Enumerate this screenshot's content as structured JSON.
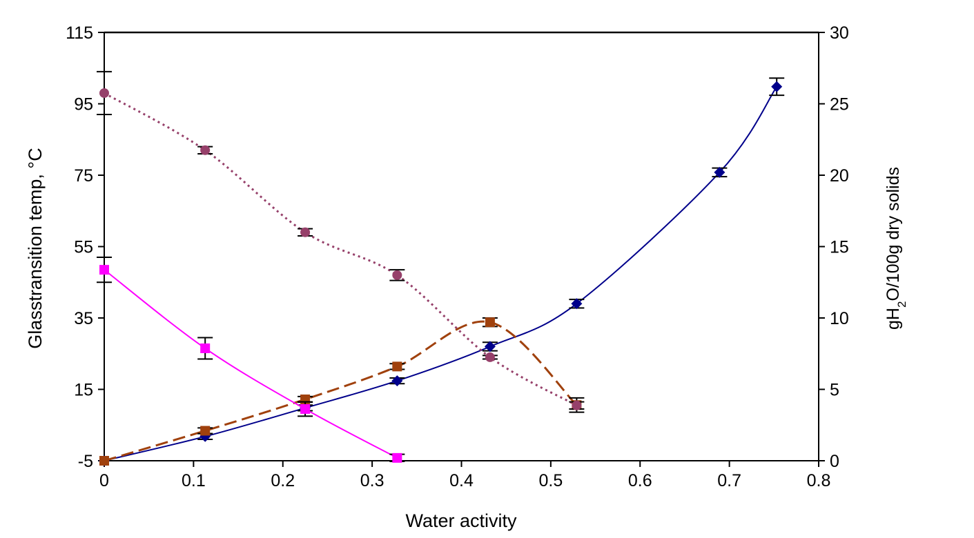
{
  "chart_data": {
    "type": "line",
    "xlabel": "Water activity",
    "ylabel_left": "Glasstransition temp, °C",
    "ylabel_right": {
      "prefix": "gH",
      "sub": "2",
      "suffix": "O/100g dry solids"
    },
    "xlim": [
      0,
      0.8
    ],
    "xticks": [
      0,
      0.1,
      0.2,
      0.3,
      0.4,
      0.5,
      0.6,
      0.7,
      0.8
    ],
    "ylim_left": [
      -5,
      115
    ],
    "yticks_left": [
      -5,
      15,
      35,
      55,
      75,
      95,
      115
    ],
    "ylim_right": [
      0,
      30
    ],
    "yticks_right": [
      0,
      5,
      10,
      15,
      20,
      25,
      30
    ],
    "grid": false,
    "legend": "none",
    "series": [
      {
        "axis": "right",
        "color": "#00008B",
        "marker": "diamond",
        "line": "solid",
        "x": [
          0,
          0.113,
          0.225,
          0.328,
          0.432,
          0.529,
          0.689,
          0.753
        ],
        "y": [
          0,
          1.7,
          3.7,
          5.6,
          8.0,
          11.0,
          20.2,
          26.2
        ],
        "err": [
          0,
          0.2,
          0.2,
          0.2,
          0.3,
          0.3,
          0.3,
          0.6
        ]
      },
      {
        "axis": "right",
        "color": "#A0410D",
        "marker": "square",
        "line": "dashed",
        "x": [
          0,
          0.113,
          0.225,
          0.328,
          0.432,
          0.529
        ],
        "y": [
          0,
          2.1,
          4.3,
          6.6,
          9.7,
          3.9
        ],
        "err": [
          0,
          0.2,
          0.2,
          0.2,
          0.3,
          0.5
        ]
      },
      {
        "axis": "left",
        "color": "#FF00FF",
        "marker": "square",
        "line": "solid",
        "x": [
          0,
          0.113,
          0.225,
          0.328
        ],
        "y": [
          48.5,
          26.5,
          9.5,
          -4.2
        ],
        "err": [
          3.5,
          3.0,
          2.0,
          1.0
        ]
      },
      {
        "axis": "left",
        "color": "#96406A",
        "marker": "circle",
        "line": "dotted",
        "x": [
          0,
          0.113,
          0.225,
          0.328,
          0.432,
          0.529
        ],
        "y": [
          98.0,
          82.0,
          59.0,
          47.0,
          24.0,
          10.5
        ],
        "err": [
          6.0,
          1.0,
          1.0,
          1.5,
          0.5,
          1.0
        ]
      }
    ]
  }
}
